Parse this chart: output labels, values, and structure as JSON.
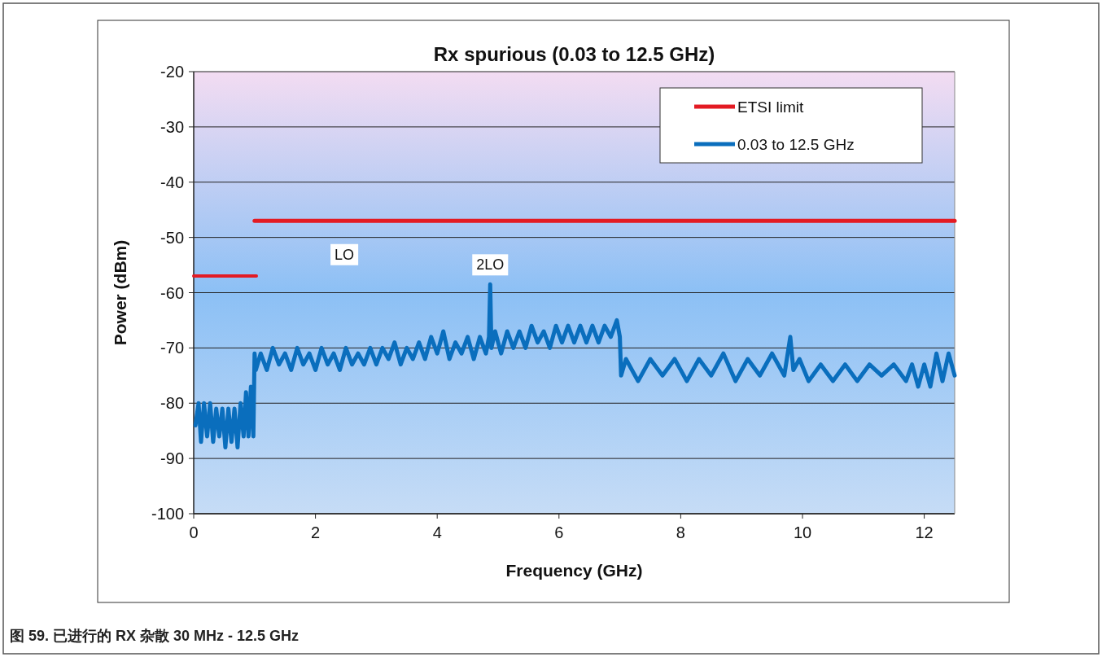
{
  "chart_data": {
    "type": "line",
    "title": "Rx spurious (0.03 to 12.5 GHz)",
    "xlabel": "Frequency (GHz)",
    "ylabel": "Power (dBm)",
    "xlim": [
      0,
      12.5
    ],
    "xticks": [
      0,
      2,
      4,
      6,
      8,
      10,
      12
    ],
    "ylim": [
      -100,
      -20
    ],
    "yticks": [
      -100,
      -90,
      -80,
      -70,
      -60,
      -50,
      -40,
      -30,
      -20
    ],
    "grid": "y",
    "legend": "top right",
    "marker": "none",
    "line_style": "solid",
    "series": [
      {
        "name": "ETSI limit",
        "color": "#e31b23",
        "x": [
          0,
          1.03
        ],
        "values": [
          -57,
          -57
        ]
      },
      {
        "color": "#e31b23",
        "x": [
          1.0,
          12.5
        ],
        "values": [
          -47,
          -47
        ]
      },
      {
        "name": "0.03 to 12.5 GHz",
        "color": "#0a6ebd",
        "x": [
          0.03,
          0.08,
          0.12,
          0.17,
          0.22,
          0.27,
          0.32,
          0.37,
          0.42,
          0.47,
          0.52,
          0.57,
          0.62,
          0.67,
          0.72,
          0.77,
          0.82,
          0.86,
          0.9,
          0.94,
          0.98,
          1.0,
          1.02,
          1.1,
          1.2,
          1.3,
          1.4,
          1.5,
          1.6,
          1.7,
          1.8,
          1.9,
          2.0,
          2.1,
          2.2,
          2.3,
          2.4,
          2.5,
          2.6,
          2.7,
          2.8,
          2.9,
          3.0,
          3.1,
          3.2,
          3.3,
          3.4,
          3.5,
          3.6,
          3.7,
          3.8,
          3.9,
          4.0,
          4.1,
          4.2,
          4.3,
          4.4,
          4.5,
          4.6,
          4.7,
          4.8,
          4.85,
          4.87,
          4.89,
          4.95,
          5.05,
          5.15,
          5.25,
          5.35,
          5.45,
          5.55,
          5.65,
          5.75,
          5.85,
          5.95,
          6.05,
          6.15,
          6.25,
          6.35,
          6.45,
          6.55,
          6.65,
          6.75,
          6.85,
          6.95,
          7.0,
          7.02,
          7.1,
          7.3,
          7.5,
          7.7,
          7.9,
          8.1,
          8.3,
          8.5,
          8.7,
          8.9,
          9.1,
          9.3,
          9.5,
          9.7,
          9.8,
          9.85,
          9.95,
          10.1,
          10.3,
          10.5,
          10.7,
          10.9,
          11.1,
          11.3,
          11.5,
          11.7,
          11.8,
          11.9,
          12.0,
          12.1,
          12.2,
          12.3,
          12.4,
          12.5
        ],
        "values": [
          -84,
          -80,
          -87,
          -80,
          -86,
          -80,
          -87,
          -81,
          -86,
          -81,
          -88,
          -81,
          -87,
          -81,
          -88,
          -80,
          -86,
          -78,
          -86,
          -77,
          -86,
          -71,
          -74,
          -71,
          -74,
          -70,
          -73,
          -71,
          -74,
          -70,
          -73,
          -71,
          -74,
          -70,
          -73,
          -71,
          -74,
          -70,
          -73,
          -71,
          -73,
          -70,
          -73,
          -70,
          -72,
          -69,
          -73,
          -70,
          -72,
          -69,
          -72,
          -68,
          -71,
          -67,
          -72,
          -69,
          -71,
          -68,
          -72,
          -68,
          -71,
          -68,
          -58.5,
          -70,
          -67,
          -71,
          -67,
          -70,
          -67,
          -70,
          -66,
          -69,
          -67,
          -70,
          -66,
          -69,
          -66,
          -69,
          -66,
          -69,
          -66,
          -69,
          -66,
          -68,
          -65,
          -68,
          -75,
          -72,
          -76,
          -72,
          -75,
          -72,
          -76,
          -72,
          -75,
          -71,
          -76,
          -72,
          -75,
          -71,
          -75,
          -68,
          -74,
          -72,
          -76,
          -73,
          -76,
          -73,
          -76,
          -73,
          -75,
          -73,
          -76,
          -73,
          -77,
          -73,
          -77,
          -71,
          -76,
          -71,
          -75
        ]
      }
    ],
    "annotations": [
      "LO",
      {
        "text": "2LO",
        "x": 4.87,
        "y": -58.5
      },
      "图 59. 已进行的 RX 杂散 30 MHz - 12.5 GHz"
    ]
  }
}
